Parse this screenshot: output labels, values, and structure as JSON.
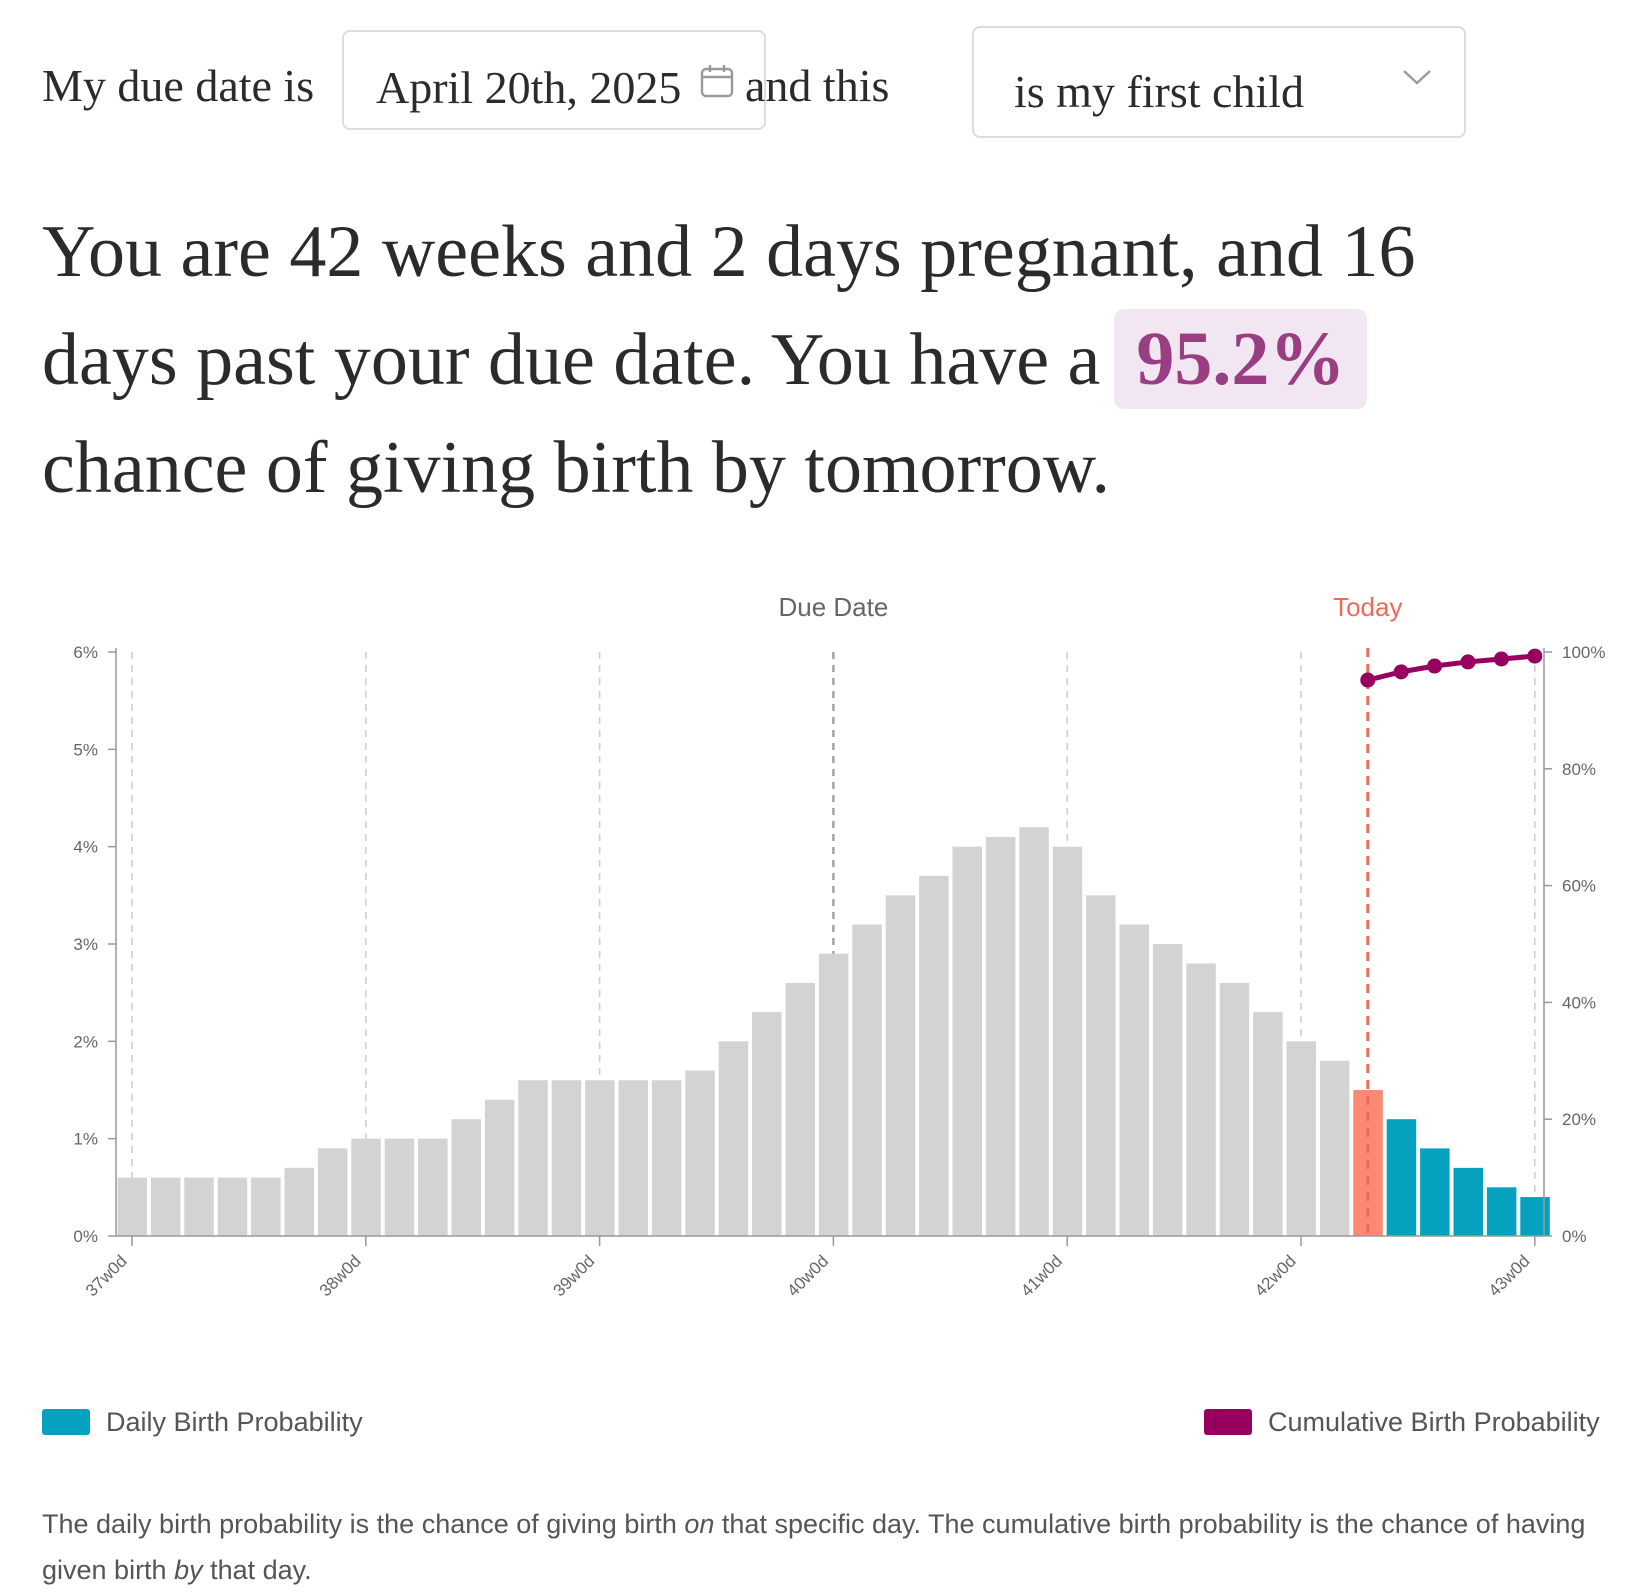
{
  "controls": {
    "prefix": "My due date is",
    "due_date": "April 20th, 2025",
    "middle": "and this",
    "child_select": "is my first child"
  },
  "headline": {
    "part1": "You are 42 weeks and 2 days pregnant, and 16 days past your due date. You have a",
    "percent": "95.2%",
    "part2": "chance of giving birth by tomorrow."
  },
  "colors": {
    "past_bar": "#d3d3d3",
    "today_bar": "#fa8a74",
    "future_bar": "#06a1bf",
    "cumulative": "#97005f",
    "today_line": "#f06a5a",
    "due_line": "#a0a0a0",
    "highlight_bg": "#f3e6f3",
    "highlight_text": "#9a3e82"
  },
  "chart_data": {
    "type": "bar",
    "title": "",
    "x_ticks": [
      "37w0d",
      "38w0d",
      "39w0d",
      "40w0d",
      "41w0d",
      "42w0d",
      "43w0d"
    ],
    "annotations": {
      "due_date": "Due Date",
      "today": "Today"
    },
    "y_left": {
      "ticks": [
        "0%",
        "1%",
        "2%",
        "3%",
        "4%",
        "5%",
        "6%"
      ],
      "range": [
        0,
        6
      ]
    },
    "y_right": {
      "ticks": [
        "0%",
        "20%",
        "40%",
        "60%",
        "80%",
        "100%"
      ],
      "range": [
        0,
        100
      ]
    },
    "daily_probability_percent": [
      0.6,
      0.6,
      0.6,
      0.6,
      0.6,
      0.7,
      0.9,
      1.0,
      1.0,
      1.0,
      1.2,
      1.4,
      1.6,
      1.6,
      1.6,
      1.6,
      1.6,
      1.7,
      2.0,
      2.3,
      2.6,
      2.9,
      3.2,
      3.5,
      3.7,
      4.0,
      4.1,
      4.2,
      4.0,
      3.5,
      3.2,
      3.0,
      2.8,
      2.6,
      2.3,
      2.0,
      1.8,
      1.5,
      1.2,
      0.9,
      0.7,
      0.5,
      0.4
    ],
    "today_index": 37,
    "due_date_index": 21,
    "cumulative_probability_percent": [
      95.2,
      96.6,
      97.6,
      98.3,
      98.8,
      99.3
    ],
    "series": [
      {
        "name": "Daily Birth Probability"
      },
      {
        "name": "Cumulative Birth Probability"
      }
    ],
    "legend": [
      "Daily Birth Probability",
      "Cumulative Birth Probability"
    ]
  },
  "note": {
    "t1": "The daily birth probability is the chance of giving birth ",
    "em1": "on",
    "t2": " that specific day. The cumulative birth probability is the chance of having given birth ",
    "em2": "by",
    "t3": " that day."
  }
}
